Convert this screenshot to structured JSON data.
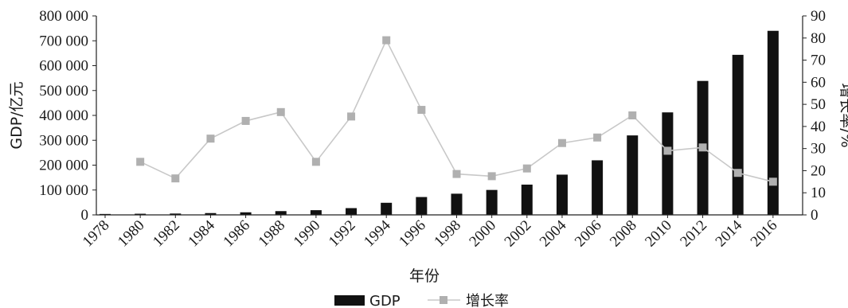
{
  "chart_data": {
    "type": "bar",
    "categories": [
      "1978",
      "1980",
      "1982",
      "1984",
      "1986",
      "1988",
      "1990",
      "1992",
      "1994",
      "1996",
      "1998",
      "2000",
      "2002",
      "2004",
      "2006",
      "2008",
      "2010",
      "2012",
      "2014",
      "2016"
    ],
    "series": [
      {
        "name": "GDP",
        "type": "bar",
        "axis": "left",
        "color": "#111111",
        "values": [
          3679,
          4588,
          5373,
          7279,
          10376,
          15180,
          18873,
          27195,
          48638,
          71814,
          85196,
          100280,
          121717,
          161840,
          219439,
          319516,
          412119,
          538580,
          643563,
          740061
        ]
      },
      {
        "name": "增长率",
        "type": "line",
        "axis": "right",
        "color": "#c8c8c8",
        "marker_color": "#b0b0b0",
        "values": [
          null,
          24,
          16.5,
          34.5,
          42.5,
          46.5,
          24,
          44.5,
          79,
          47.5,
          18.5,
          17.5,
          21,
          32.5,
          35,
          45,
          29,
          30.5,
          19,
          15
        ]
      }
    ],
    "xlabel": "年份",
    "ylabel": "GDP/亿元",
    "y2label": "增长率/%",
    "ylim": [
      0,
      800000
    ],
    "y2lim": [
      0,
      90
    ],
    "yticks": [
      "0",
      "100 000",
      "200 000",
      "300 000",
      "400 000",
      "500 000",
      "600 000",
      "700 000",
      "800 000"
    ],
    "y2ticks": [
      "0",
      "10",
      "20",
      "30",
      "40",
      "50",
      "60",
      "70",
      "80",
      "90"
    ],
    "grid": false,
    "legend": "bottom-center"
  }
}
